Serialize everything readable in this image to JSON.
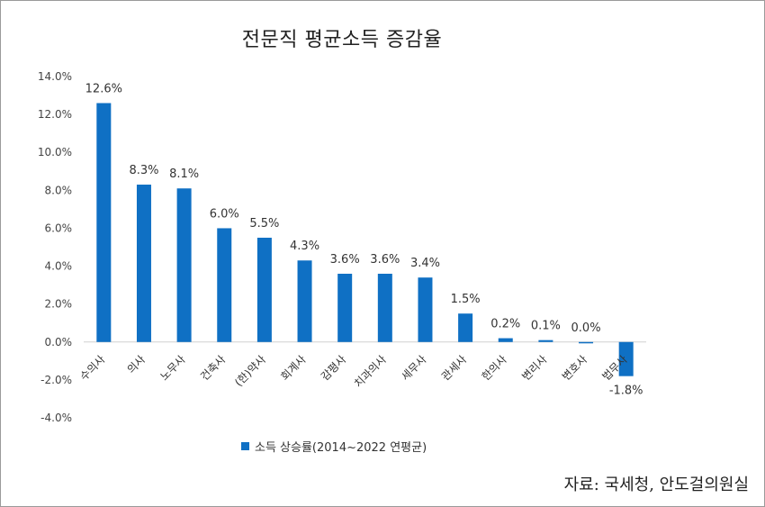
{
  "chart_data": {
    "type": "bar",
    "title": "전문직 평균소득 증감율",
    "categories": [
      "수의사",
      "의사",
      "노무사",
      "건축사",
      "(한)약사",
      "회계사",
      "감평사",
      "치과의사",
      "세무사",
      "관세사",
      "한의사",
      "변리사",
      "변호사",
      "법무사"
    ],
    "series": [
      {
        "name": "소득 상승률(2014~2022 연평균)",
        "values": [
          12.6,
          8.3,
          8.1,
          6.0,
          5.5,
          4.3,
          3.6,
          3.6,
          3.4,
          1.5,
          0.2,
          0.1,
          0.0,
          -1.8
        ],
        "data_labels": [
          "12.6%",
          "8.3%",
          "8.1%",
          "6.0%",
          "5.5%",
          "4.3%",
          "3.6%",
          "3.6%",
          "3.4%",
          "1.5%",
          "0.2%",
          "0.1%",
          "0.0%",
          "-1.8%"
        ],
        "color": "#0f70c4"
      }
    ],
    "ylim": [
      -4,
      14
    ],
    "y_ticks": [
      14,
      12,
      10,
      8,
      6,
      4,
      2,
      0,
      -2,
      -4
    ],
    "y_tick_labels": [
      "14.0%",
      "12.0%",
      "10.0%",
      "8.0%",
      "6.0%",
      "4.0%",
      "2.0%",
      "0.0%",
      "-2.0%",
      "-4.0%"
    ],
    "xlabel": "",
    "ylabel": "",
    "grid": false,
    "legend_position": "bottom"
  },
  "source_note": "자료: 국세청, 안도걸의원실"
}
